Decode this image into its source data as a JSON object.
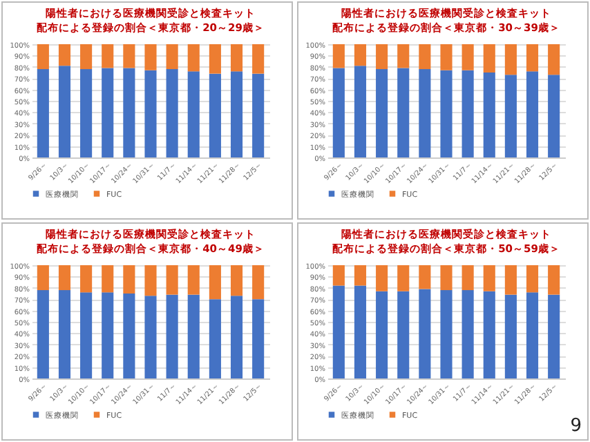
{
  "chart_data": [
    {
      "type": "bar",
      "stacked": true,
      "title": "陽性者における医療機関受診と検査キット",
      "subtitle": "配布による登録の割合＜東京都・20～29歳＞",
      "categories": [
        "9/26～",
        "10/3～",
        "10/10～",
        "10/17～",
        "10/24～",
        "10/31～",
        "11/7～",
        "11/14～",
        "11/21～",
        "11/28～",
        "12/5～"
      ],
      "series": [
        {
          "name": "医療機関",
          "color": "#4472c4",
          "values": [
            78,
            81,
            78,
            79,
            79,
            77,
            78,
            76,
            74,
            76,
            74
          ]
        },
        {
          "name": "FUC",
          "color": "#ed7d31",
          "values": [
            22,
            19,
            22,
            21,
            21,
            23,
            22,
            24,
            26,
            24,
            26
          ]
        }
      ],
      "ylim": [
        0,
        100
      ],
      "yticks": [
        {
          "value": 0,
          "label": "0%"
        },
        {
          "value": 10,
          "label": "10%"
        },
        {
          "value": 20,
          "label": "20%"
        },
        {
          "value": 30,
          "label": "30%"
        },
        {
          "value": 40,
          "label": "40%"
        },
        {
          "value": 50,
          "label": "50%"
        },
        {
          "value": 60,
          "label": "60%"
        },
        {
          "value": 70,
          "label": "70%"
        },
        {
          "value": 80,
          "label": "80%"
        },
        {
          "value": 90,
          "label": "90%"
        },
        {
          "value": 100,
          "label": "100%"
        }
      ],
      "grid": "y",
      "legend": "bottom"
    },
    {
      "type": "bar",
      "stacked": true,
      "title": "陽性者における医療機関受診と検査キット",
      "subtitle": "配布による登録の割合＜東京都・30～39歳＞",
      "categories": [
        "9/26～",
        "10/3～",
        "10/10～",
        "10/17～",
        "10/24～",
        "10/31～",
        "11/7～",
        "11/14～",
        "11/21～",
        "11/28～",
        "12/5～"
      ],
      "series": [
        {
          "name": "医療機関",
          "color": "#4472c4",
          "values": [
            79,
            81,
            78,
            79,
            78,
            77,
            77,
            75,
            73,
            76,
            73
          ]
        },
        {
          "name": "FUC",
          "color": "#ed7d31",
          "values": [
            21,
            19,
            22,
            21,
            22,
            23,
            23,
            25,
            27,
            24,
            27
          ]
        }
      ],
      "ylim": [
        0,
        100
      ],
      "yticks": [
        {
          "value": 0,
          "label": "0%"
        },
        {
          "value": 10,
          "label": "10%"
        },
        {
          "value": 20,
          "label": "20%"
        },
        {
          "value": 30,
          "label": "30%"
        },
        {
          "value": 40,
          "label": "40%"
        },
        {
          "value": 50,
          "label": "50%"
        },
        {
          "value": 60,
          "label": "60%"
        },
        {
          "value": 70,
          "label": "70%"
        },
        {
          "value": 80,
          "label": "80%"
        },
        {
          "value": 90,
          "label": "90%"
        },
        {
          "value": 100,
          "label": "100%"
        }
      ],
      "grid": "y",
      "legend": "bottom"
    },
    {
      "type": "bar",
      "stacked": true,
      "title": "陽性者における医療機関受診と検査キット",
      "subtitle": "配布による登録の割合＜東京都・40～49歳＞",
      "categories": [
        "9/26～",
        "10/3～",
        "10/10～",
        "10/17～",
        "10/24～",
        "10/31～",
        "11/7～",
        "11/14～",
        "11/21～",
        "11/28～",
        "12/5～"
      ],
      "series": [
        {
          "name": "医療機関",
          "color": "#4472c4",
          "values": [
            78,
            78,
            76,
            76,
            75,
            73,
            74,
            74,
            70,
            73,
            70
          ]
        },
        {
          "name": "FUC",
          "color": "#ed7d31",
          "values": [
            22,
            22,
            24,
            24,
            25,
            27,
            26,
            26,
            30,
            27,
            30
          ]
        }
      ],
      "ylim": [
        0,
        100
      ],
      "yticks": [
        {
          "value": 0,
          "label": "0%"
        },
        {
          "value": 10,
          "label": "10%"
        },
        {
          "value": 20,
          "label": "20%"
        },
        {
          "value": 30,
          "label": "30%"
        },
        {
          "value": 40,
          "label": "40%"
        },
        {
          "value": 50,
          "label": "50%"
        },
        {
          "value": 60,
          "label": "60%"
        },
        {
          "value": 70,
          "label": "70%"
        },
        {
          "value": 80,
          "label": "80%"
        },
        {
          "value": 90,
          "label": "90%"
        },
        {
          "value": 100,
          "label": "100%"
        }
      ],
      "grid": "y",
      "legend": "bottom"
    },
    {
      "type": "bar",
      "stacked": true,
      "title": "陽性者における医療機関受診と検査キット",
      "subtitle": "配布による登録の割合＜東京都・50～59歳＞",
      "categories": [
        "9/26～",
        "10/3～",
        "10/10～",
        "10/17～",
        "10/24～",
        "10/31～",
        "11/7～",
        "11/14～",
        "11/21～",
        "11/28～",
        "12/5～"
      ],
      "series": [
        {
          "name": "医療機関",
          "color": "#4472c4",
          "values": [
            82,
            82,
            77,
            77,
            79,
            78,
            78,
            77,
            74,
            76,
            74
          ]
        },
        {
          "name": "FUC",
          "color": "#ed7d31",
          "values": [
            18,
            18,
            23,
            23,
            21,
            22,
            22,
            23,
            26,
            24,
            26
          ]
        }
      ],
      "ylim": [
        0,
        100
      ],
      "yticks": [
        {
          "value": 0,
          "label": "0%"
        },
        {
          "value": 10,
          "label": "10%"
        },
        {
          "value": 20,
          "label": "20%"
        },
        {
          "value": 30,
          "label": "30%"
        },
        {
          "value": 40,
          "label": "40%"
        },
        {
          "value": 50,
          "label": "50%"
        },
        {
          "value": 60,
          "label": "60%"
        },
        {
          "value": 70,
          "label": "70%"
        },
        {
          "value": 80,
          "label": "80%"
        },
        {
          "value": 90,
          "label": "90%"
        },
        {
          "value": 100,
          "label": "100%"
        }
      ],
      "grid": "y",
      "legend": "bottom",
      "annotations": [
        "9"
      ]
    }
  ]
}
